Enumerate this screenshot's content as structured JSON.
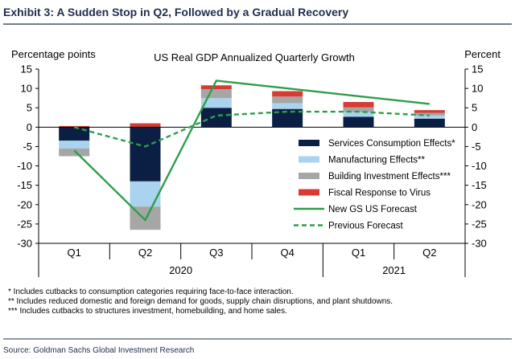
{
  "header": {
    "exhibit_title": "Exhibit 3: A Sudden Stop in Q2, Followed by a Gradual Recovery"
  },
  "footnotes": [
    "* Includes cutbacks to consumption categories requiring face-to-face interaction.",
    "** Includes reduced domestic and foreign demand for goods, supply chain disruptions, and plant shutdowns.",
    "*** Includes cutbacks to structures investment, homebuilding, and home sales."
  ],
  "source": "Source: Goldman Sachs Global Investment Research",
  "colors": {
    "services": "#0b1f45",
    "manufacturing": "#a9d3ee",
    "building": "#a6a6a6",
    "fiscal": "#d73b34",
    "forecast_line": "#2f9e49",
    "title_color": "#1f2d4d"
  },
  "chart_data": {
    "type": "bar",
    "title": "US Real GDP Annualized Quarterly Growth",
    "ylabel_left": "Percentage points",
    "ylabel_right": "Percent",
    "ylim": [
      -30,
      15
    ],
    "yticks": [
      15,
      10,
      5,
      0,
      -5,
      -10,
      -15,
      -20,
      -25,
      -30
    ],
    "categories": [
      "Q1",
      "Q2",
      "Q3",
      "Q4",
      "Q1",
      "Q2"
    ],
    "year_labels": [
      {
        "label": "2020",
        "from": 0,
        "to": 3
      },
      {
        "label": "2021",
        "from": 4,
        "to": 5
      }
    ],
    "stacked_series": [
      {
        "name": "Services Consumption Effects*",
        "color_key": "services",
        "values": [
          -3.5,
          -14.0,
          5.0,
          4.7,
          2.7,
          2.2
        ]
      },
      {
        "name": "Manufacturing Effects**",
        "color_key": "manufacturing",
        "values": [
          -2.0,
          -6.5,
          2.5,
          1.5,
          1.2,
          0.8
        ]
      },
      {
        "name": "Building Investment Effects***",
        "color_key": "building",
        "values": [
          -2.0,
          -6.0,
          2.3,
          1.7,
          1.2,
          0.7
        ]
      },
      {
        "name": "Fiscal Response to Virus",
        "color_key": "fiscal",
        "values": [
          0.3,
          1.0,
          1.0,
          1.4,
          1.4,
          0.7
        ]
      }
    ],
    "line_series": [
      {
        "name": "New GS US Forecast",
        "color_key": "forecast_line",
        "style": "solid",
        "values": [
          -6.0,
          -24.0,
          12.0,
          10.0,
          8.0,
          6.0
        ]
      },
      {
        "name": "Previous Forecast",
        "color_key": "forecast_line",
        "style": "dashed",
        "values": [
          0.0,
          -5.0,
          3.0,
          4.0,
          4.0,
          3.0
        ]
      }
    ],
    "grid": false,
    "legend_position": "right-inside"
  }
}
